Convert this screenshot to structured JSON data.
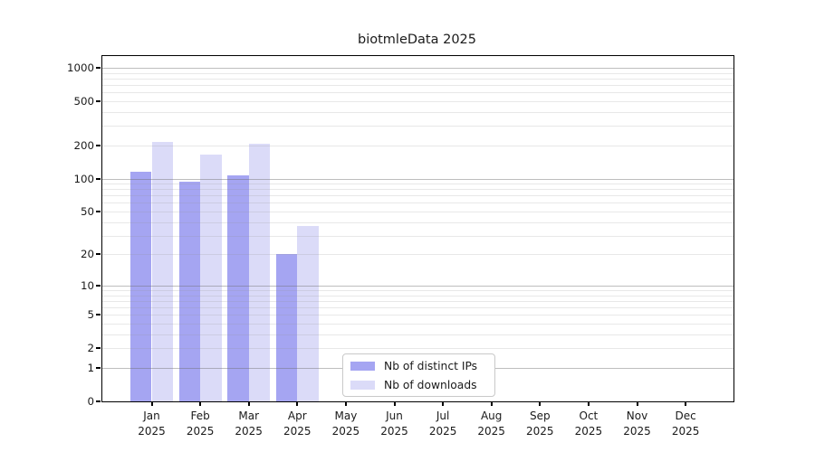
{
  "chart_data": {
    "type": "bar",
    "title": "biotmleData 2025",
    "categories": [
      "Jan",
      "Feb",
      "Mar",
      "Apr",
      "May",
      "Jun",
      "Jul",
      "Aug",
      "Sep",
      "Oct",
      "Nov",
      "Dec"
    ],
    "x_tick_second_line": "2025",
    "series": [
      {
        "name": "Nb of distinct IPs",
        "color": "#a5a5f2",
        "values": [
          116,
          94,
          107,
          20,
          null,
          null,
          null,
          null,
          null,
          null,
          null,
          null
        ]
      },
      {
        "name": "Nb of downloads",
        "color": "#dbdbf8",
        "values": [
          214,
          165,
          205,
          37,
          null,
          null,
          null,
          null,
          null,
          null,
          null,
          null
        ]
      }
    ],
    "y_axis": {
      "scale": "log1p",
      "tick_labels": [
        0,
        1,
        2,
        5,
        10,
        20,
        50,
        100,
        200,
        500,
        1000
      ],
      "major_gridlines": [
        1,
        10,
        100,
        1000
      ],
      "minor_gridline_multipliers": [
        2,
        3,
        4,
        5,
        6,
        7,
        8,
        9
      ],
      "minor_gridline_decades": [
        1,
        10,
        100
      ],
      "top_value": 1275
    },
    "legend": {
      "position": "lower-center",
      "entries": [
        "Nb of distinct IPs",
        "Nb of downloads"
      ]
    },
    "grid_on": true,
    "xlabel": "",
    "ylabel": ""
  }
}
